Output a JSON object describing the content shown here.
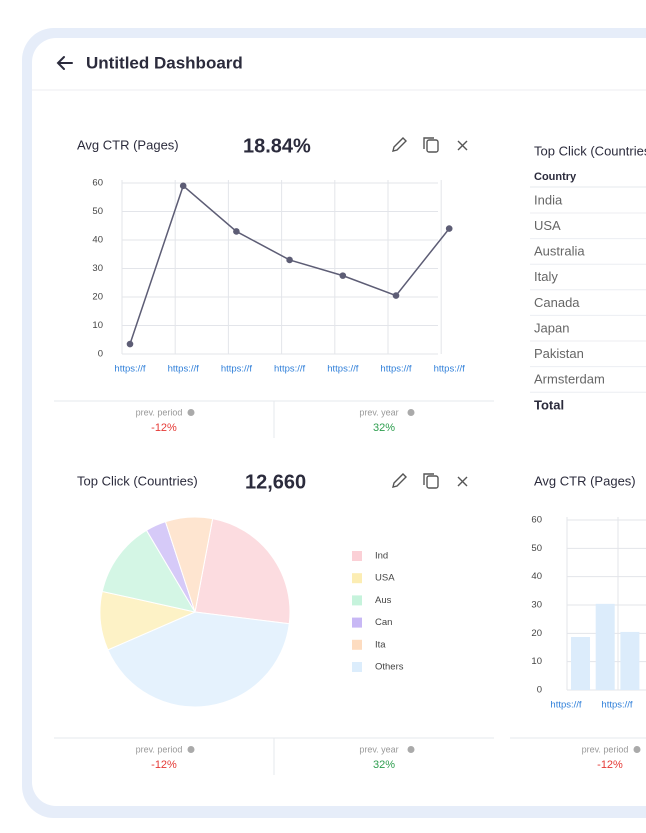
{
  "header": {
    "title": "Untitled Dashboard"
  },
  "chart_data": [
    {
      "type": "line",
      "title": "Avg CTR (Pages)",
      "metric": "18.84%",
      "categories": [
        "https://f",
        "https://f",
        "https://f",
        "https://f",
        "https://f",
        "https://f",
        "https://f"
      ],
      "values": [
        3.5,
        59,
        43,
        33,
        27.5,
        20.5,
        44
      ],
      "color": "#5d5d75",
      "ylim": [
        0,
        60
      ],
      "yticks": [
        0,
        10,
        20,
        30,
        40,
        50,
        60
      ],
      "grid": true,
      "comparisons": [
        {
          "label": "prev. period",
          "value": "-12%",
          "color": "#e53935"
        },
        {
          "label": "prev. year",
          "value": "32%",
          "color": "#2e9e4f"
        }
      ]
    },
    {
      "type": "pie",
      "title": "Top Click (Countries)",
      "metric": "12,660",
      "categories": [
        "Ind",
        "USA",
        "Aus",
        "Can",
        "Ita",
        "Others"
      ],
      "values": [
        24,
        10,
        13,
        3.5,
        8,
        41.5
      ],
      "colors": [
        "#fbd0d6",
        "#fcedb3",
        "#c6f3dc",
        "#c8b8f5",
        "#fddcc0",
        "#dcedfc"
      ],
      "comparisons": [
        {
          "label": "prev. period",
          "value": "-12%",
          "color": "#e53935"
        },
        {
          "label": "prev. year",
          "value": "32%",
          "color": "#2e9e4f"
        }
      ]
    },
    {
      "type": "bar",
      "title": "Avg CTR (Pages)",
      "categories": [
        "https://f",
        "https://f",
        null
      ],
      "values": [
        18.7,
        30.4,
        20.5
      ],
      "color": "#dcecfb",
      "ylim": [
        0,
        60
      ],
      "yticks": [
        0,
        10,
        20,
        30,
        40,
        50,
        60
      ],
      "grid": true,
      "comparisons": [
        {
          "label": "prev. period",
          "value": "-12%",
          "color": "#e53935"
        }
      ]
    }
  ],
  "table": {
    "title": "Top Click (Countries)",
    "header": "Country",
    "rows": [
      "India",
      "USA",
      "Australia",
      "Italy",
      "Canada",
      "Japan",
      "Pakistan",
      "Armsterdam"
    ],
    "footer": "Total"
  }
}
